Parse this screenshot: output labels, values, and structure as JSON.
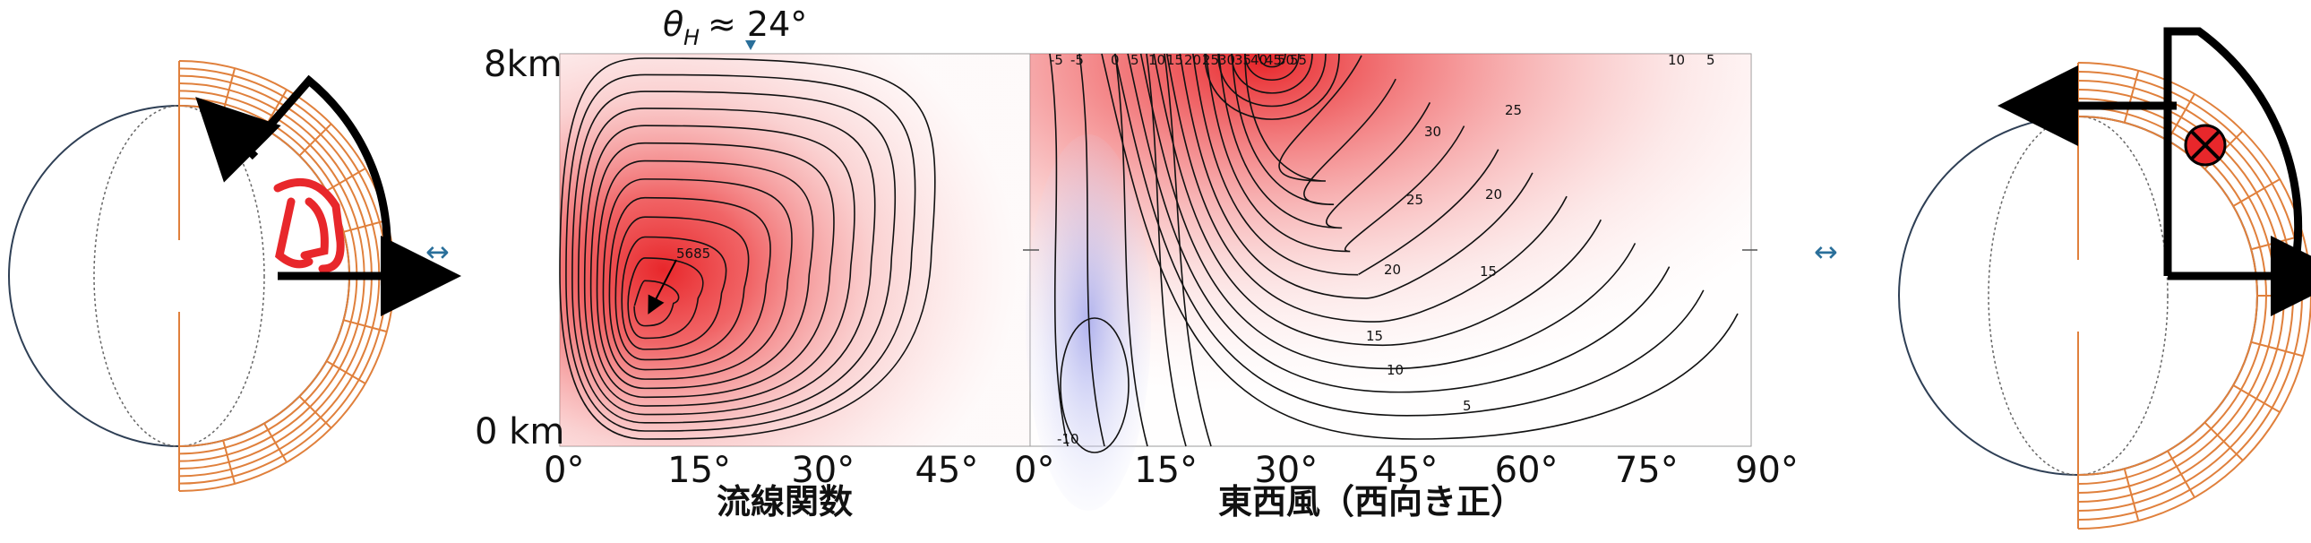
{
  "annotation": {
    "theta_label": "θ",
    "theta_sub": "H",
    "theta_rest": " ≈ 24°",
    "marker_color": "#2a6f9a"
  },
  "left_chart": {
    "title": "流線関数",
    "y_top_label": "8km",
    "y_bottom_label": "0 km",
    "x_ticks": [
      "0°",
      "15°",
      "30°",
      "45°"
    ],
    "peak_label": "5685"
  },
  "right_chart": {
    "title": "東西風（西向き正）",
    "x_ticks": [
      "0°",
      "15°",
      "30°",
      "45°",
      "60°",
      "75°",
      "90°"
    ],
    "top_labels": [
      "-5",
      "-5",
      "0",
      "5",
      "10",
      "15",
      "20",
      "25",
      "30",
      "35",
      "40",
      "45",
      "50",
      "55",
      "10",
      "5"
    ],
    "contour_labels": [
      "25",
      "30",
      "25",
      "20",
      "20",
      "15",
      "15",
      "10",
      "5",
      "-10"
    ]
  },
  "chart_data": [
    {
      "type": "heatmap",
      "title": "流線関数",
      "x_ticks": [
        "0°",
        "15°",
        "30°",
        "45°"
      ],
      "xlim": [
        0,
        57
      ],
      "ylim": [
        0,
        8
      ],
      "y_labels": [
        "0 km",
        "8km"
      ],
      "annotations": [
        "5685"
      ]
    },
    {
      "type": "heatmap",
      "title": "東西風（西向き正）",
      "x_ticks": [
        "0°",
        "15°",
        "30°",
        "45°",
        "60°",
        "75°",
        "90°"
      ],
      "xlim": [
        0,
        90
      ],
      "ylim": [
        0,
        8
      ],
      "contour_values": [
        -10,
        -5,
        0,
        5,
        10,
        15,
        20,
        25,
        30,
        35,
        40,
        45,
        50,
        55
      ]
    }
  ],
  "colors": {
    "positive": "#e8272b",
    "negative": "#8f95e8",
    "grid_orange": "#e0803c",
    "globe_line": "#2e3f55",
    "arrow_blue": "#2a6f9a"
  }
}
